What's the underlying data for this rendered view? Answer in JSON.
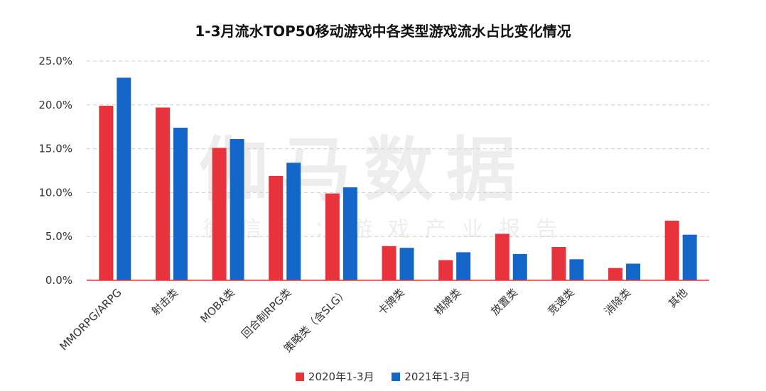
{
  "chart_data": {
    "type": "bar",
    "title": "1-3月流水TOP50移动游戏中各类型游戏流水占比变化情况",
    "categories": [
      "MMORPG/ARPG",
      "射击类",
      "MOBA类",
      "回合制RPG类",
      "策略类（含SLG）",
      "卡牌类",
      "棋牌类",
      "放置类",
      "竞速类",
      "消除类",
      "其他"
    ],
    "series": [
      {
        "name": "2020年1-3月",
        "color": "#E8333C",
        "values": [
          19.9,
          19.7,
          15.1,
          11.9,
          9.9,
          3.9,
          2.3,
          5.3,
          3.8,
          1.4,
          6.8
        ]
      },
      {
        "name": "2021年1-3月",
        "color": "#1466C8",
        "values": [
          23.1,
          17.4,
          16.1,
          13.4,
          10.6,
          3.7,
          3.2,
          3.0,
          2.4,
          1.9,
          5.2
        ]
      }
    ],
    "ylim": [
      0,
      25
    ],
    "yticks": [
      "0.0%",
      "5.0%",
      "10.0%",
      "15.0%",
      "20.0%",
      "25.0%"
    ],
    "grid": true,
    "legend": "bottom"
  },
  "watermark": {
    "main": "伽马数据",
    "sub": "微信号：游戏产业报告"
  }
}
